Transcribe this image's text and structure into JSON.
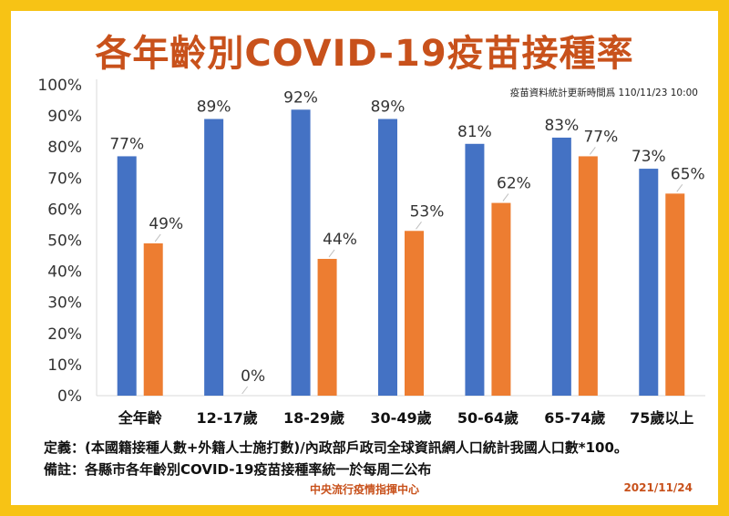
{
  "colors": {
    "frame": "#f7c315",
    "title": "#c8511b",
    "series_1": "#4472c4",
    "series_2": "#ed7d31"
  },
  "header": {
    "title": "各年齡別COVID-19疫苗接種率",
    "update_note": "疫苗資料統計更新時間爲 110/11/23 10:00"
  },
  "notes": {
    "definition": "定義：(本國籍接種人數+外籍人士施打數)/內政部戶政司全球資訊網人口統計我國人口數*100。",
    "remark": "備註：各縣市各年齡別COVID-19疫苗接種率統一於每周二公布"
  },
  "footer": {
    "org": "中央流行疫情指揮中心",
    "date": "2021/11/24"
  },
  "chart_data": {
    "type": "bar",
    "categories": [
      "全年齡",
      "12-17歲",
      "18-29歲",
      "30-49歲",
      "50-64歲",
      "65-74歲",
      "75歲以上"
    ],
    "series": [
      {
        "values": [
          77,
          89,
          92,
          89,
          81,
          83,
          73
        ],
        "labels": [
          "77%",
          "89%",
          "92%",
          "89%",
          "81%",
          "83%",
          "73%"
        ]
      },
      {
        "values": [
          49,
          0,
          44,
          53,
          62,
          77,
          65
        ],
        "labels": [
          "49%",
          "0%",
          "44%",
          "53%",
          "62%",
          "77%",
          "65%"
        ]
      }
    ],
    "ylim": [
      0,
      100
    ],
    "yticks": [
      "0%",
      "10%",
      "20%",
      "30%",
      "40%",
      "50%",
      "60%",
      "70%",
      "80%",
      "90%",
      "100%"
    ],
    "grid": false,
    "legend": "none"
  }
}
